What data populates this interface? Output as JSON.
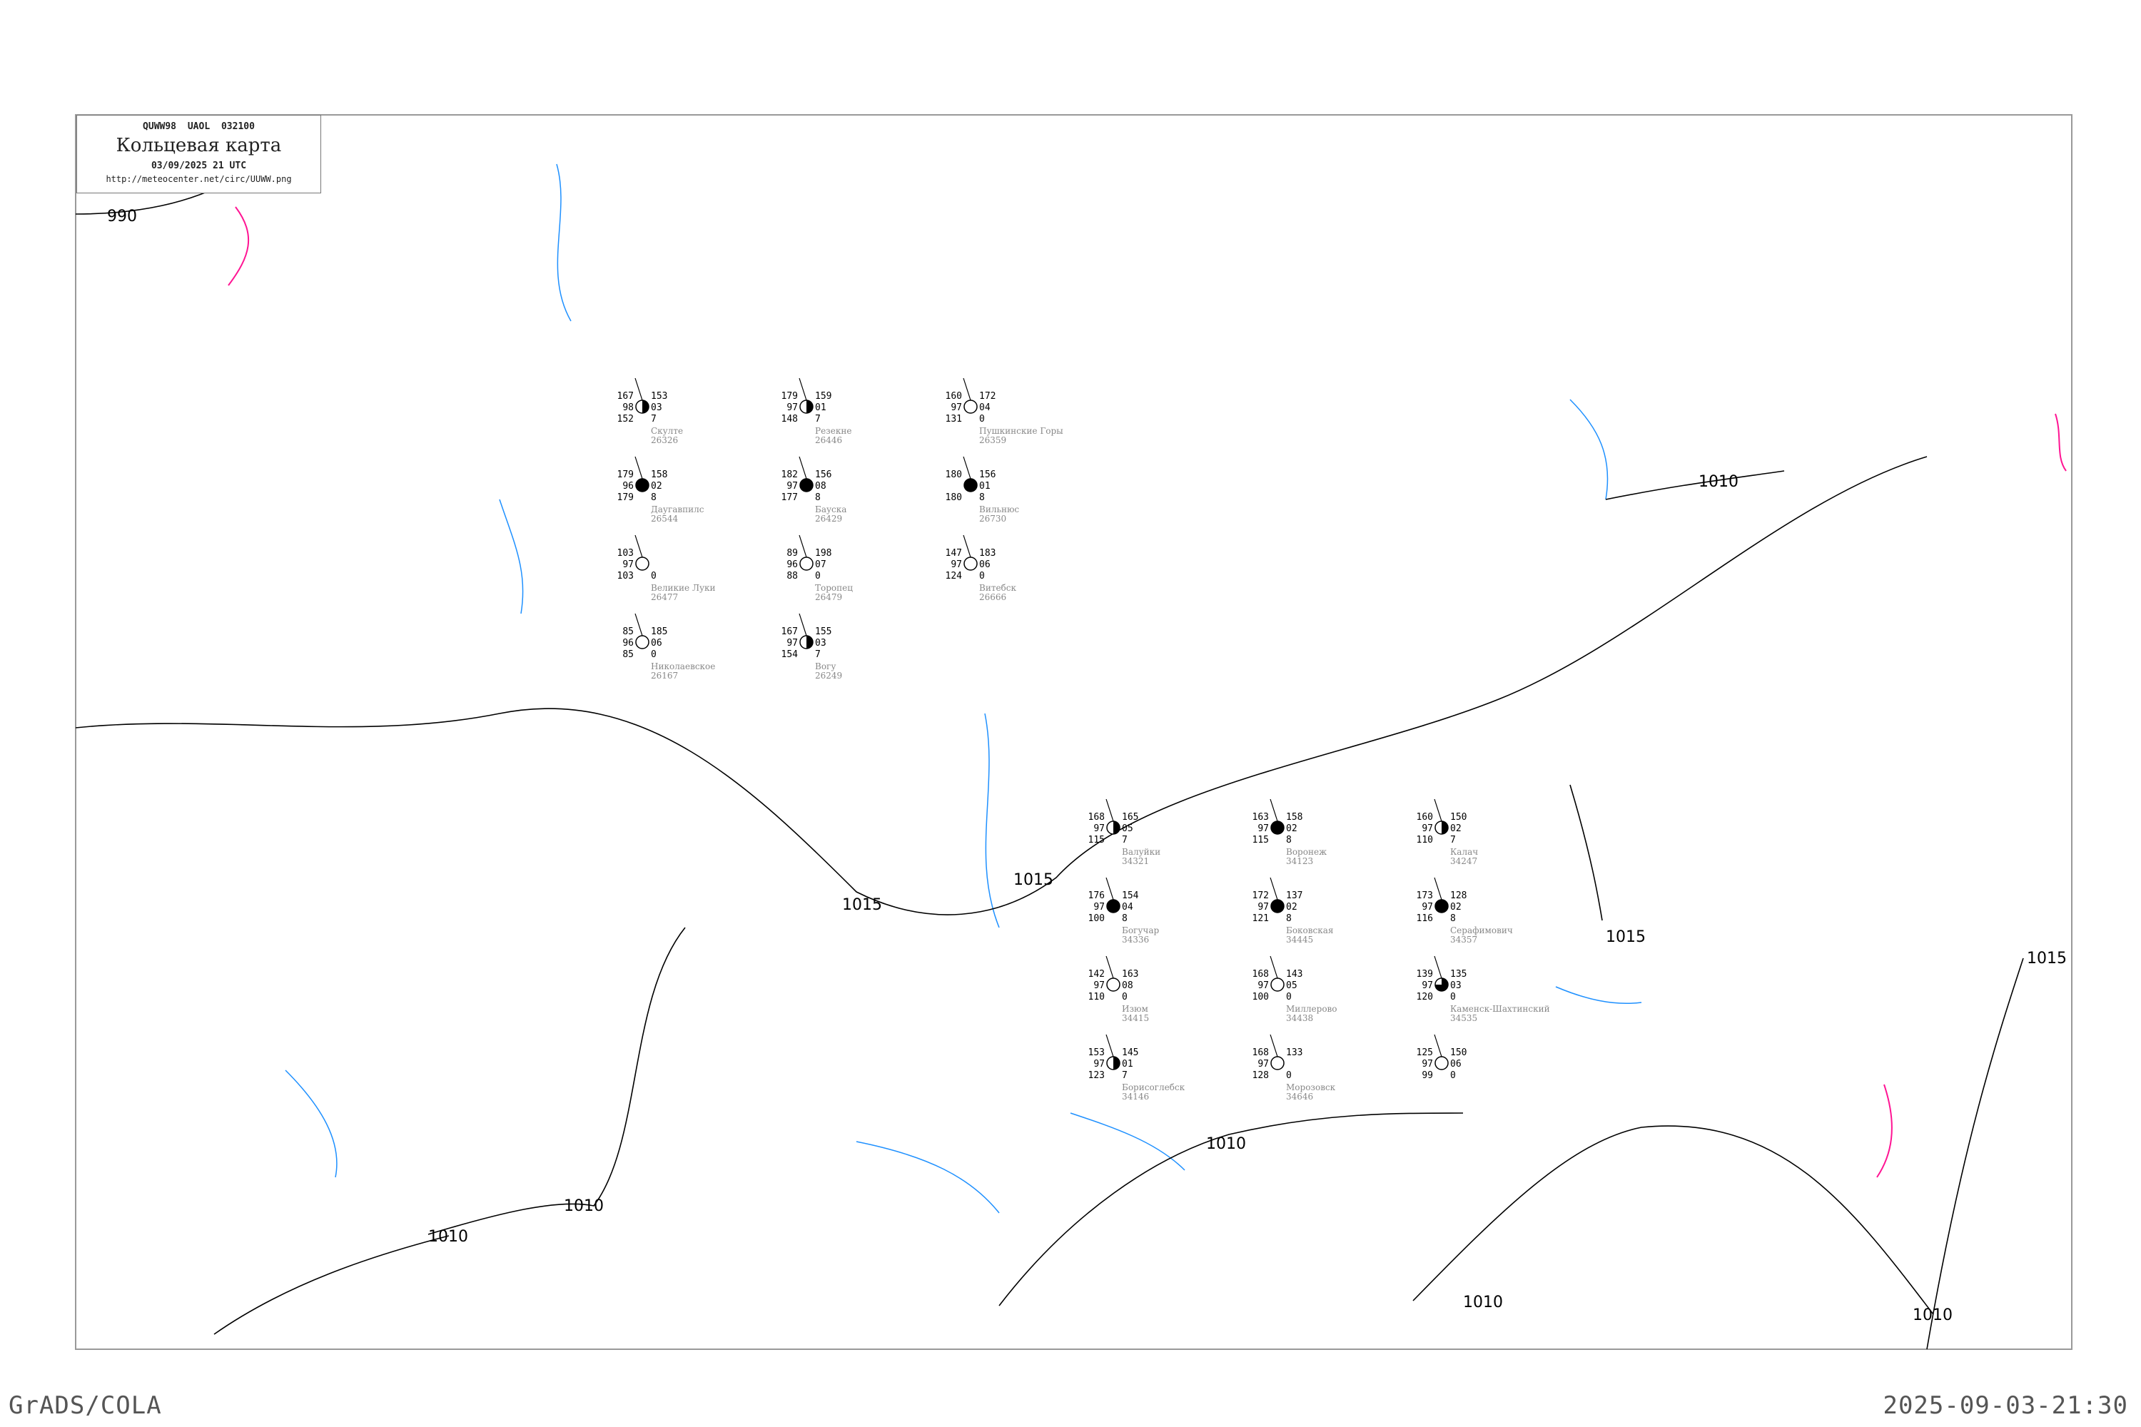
{
  "header": {
    "code": "QUWW98   UAOL   032100",
    "title": "Кольцевая карта",
    "datetime": "03/09/2025 21 UTC",
    "url": "http://meteocenter.net/circ/UUWW.png"
  },
  "footer": {
    "left": "GrADS/COLA",
    "right": "2025-09-03-21:30"
  },
  "colors": {
    "isobar": "#000000",
    "coast": "#aaaaaa",
    "river": "#1e90ff",
    "front": "#ff1493",
    "station_name": "#888888",
    "highlight": "#ffef9a"
  },
  "isobar_labels": [
    "990",
    "1010",
    "1015",
    "1015",
    "1015",
    "1010",
    "1010",
    "1010",
    "1010",
    "1010",
    "1015"
  ],
  "stations": [
    {
      "name": "Валуйки",
      "index": "34321",
      "tl": "168",
      "ml": "97",
      "bl": "115",
      "tr": "165",
      "mr": "05",
      "br": "7",
      "cover": 0.5
    },
    {
      "name": "Воронеж",
      "index": "34123",
      "tl": "163",
      "ml": "97",
      "bl": "115",
      "tr": "158",
      "mr": "02",
      "br": "8",
      "cover": 1
    },
    {
      "name": "Калач",
      "index": "34247",
      "tl": "160",
      "ml": "97",
      "bl": "110",
      "tr": "150",
      "mr": "02",
      "br": "7",
      "cover": 0.5
    },
    {
      "name": "Богучар",
      "index": "34336",
      "tl": "176",
      "ml": "97",
      "bl": "100",
      "tr": "154",
      "mr": "04",
      "br": "8",
      "cover": 1
    },
    {
      "name": "Боковская",
      "index": "34445",
      "tl": "172",
      "ml": "97",
      "bl": "121",
      "tr": "137",
      "mr": "02",
      "br": "8",
      "cover": 1
    },
    {
      "name": "Серафимович",
      "index": "34357",
      "tl": "173",
      "ml": "97",
      "bl": "116",
      "tr": "128",
      "mr": "02",
      "br": "8",
      "cover": 1
    },
    {
      "name": "Изюм",
      "index": "34415",
      "tl": "142",
      "ml": "97",
      "bl": "110",
      "tr": "163",
      "mr": "08",
      "br": "0",
      "cover": 0
    },
    {
      "name": "Миллерово",
      "index": "34438",
      "tl": "168",
      "ml": "97",
      "bl": "100",
      "tr": "143",
      "mr": "05",
      "br": "0",
      "cover": 0
    },
    {
      "name": "Каменск-Шахтинский",
      "index": "34535",
      "tl": "139",
      "ml": "97",
      "bl": "120",
      "tr": "135",
      "mr": "03",
      "br": "0",
      "cover": 0.75
    },
    {
      "name": "Борисоглебск",
      "index": "34146",
      "tl": "153",
      "ml": "97",
      "bl": "123",
      "tr": "145",
      "mr": "01",
      "br": "7",
      "cover": 0.5
    },
    {
      "name": "Морозовск",
      "index": "34646",
      "tl": "168",
      "ml": "97",
      "bl": "128",
      "tr": "133",
      "mr": "",
      "br": "0",
      "cover": 0
    },
    {
      "name": "",
      "index": "",
      "tl": "125",
      "ml": "97",
      "bl": "99",
      "tr": "150",
      "mr": "06",
      "br": "0",
      "cover": 0
    },
    {
      "name": "Скулте",
      "index": "26326",
      "tl": "167",
      "ml": "98",
      "bl": "152",
      "tr": "153",
      "mr": "03",
      "br": "7",
      "cover": 0.5
    },
    {
      "name": "Резекне",
      "index": "26446",
      "tl": "179",
      "ml": "97",
      "bl": "148",
      "tr": "159",
      "mr": "01",
      "br": "7",
      "cover": 0.5
    },
    {
      "name": "Пушкинские Горы",
      "index": "26359",
      "tl": "160",
      "ml": "97",
      "bl": "131",
      "tr": "172",
      "mr": "04",
      "br": "0",
      "cover": 0
    },
    {
      "name": "Даугавпилс",
      "index": "26544",
      "tl": "179",
      "ml": "96",
      "bl": "179",
      "tr": "158",
      "mr": "02",
      "br": "8",
      "cover": 1
    },
    {
      "name": "Бауска",
      "index": "26429",
      "tl": "182",
      "ml": "97",
      "bl": "177",
      "tr": "156",
      "mr": "08",
      "br": "8",
      "cover": 1
    },
    {
      "name": "Вильнюс",
      "index": "26730",
      "tl": "180",
      "ml": "",
      "bl": "180",
      "tr": "156",
      "mr": "01",
      "br": "8",
      "cover": 1
    },
    {
      "name": "Великие Луки",
      "index": "26477",
      "tl": "103",
      "ml": "97",
      "bl": "103",
      "tr": "",
      "mr": "",
      "br": "0",
      "cover": 0
    },
    {
      "name": "Торопец",
      "index": "26479",
      "tl": "89",
      "ml": "96",
      "bl": "88",
      "tr": "198",
      "mr": "07",
      "br": "0",
      "cover": 0
    },
    {
      "name": "Витебск",
      "index": "26666",
      "tl": "147",
      "ml": "97",
      "bl": "124",
      "tr": "183",
      "mr": "06",
      "br": "0",
      "cover": 0
    },
    {
      "name": "Николаевское",
      "index": "26167",
      "tl": "85",
      "ml": "96",
      "bl": "85",
      "tr": "185",
      "mr": "06",
      "br": "0",
      "cover": 0
    },
    {
      "name": "Вогу",
      "index": "26249",
      "tl": "167",
      "ml": "97",
      "bl": "154",
      "tr": "155",
      "mr": "03",
      "br": "7",
      "cover": 0.5
    }
  ]
}
